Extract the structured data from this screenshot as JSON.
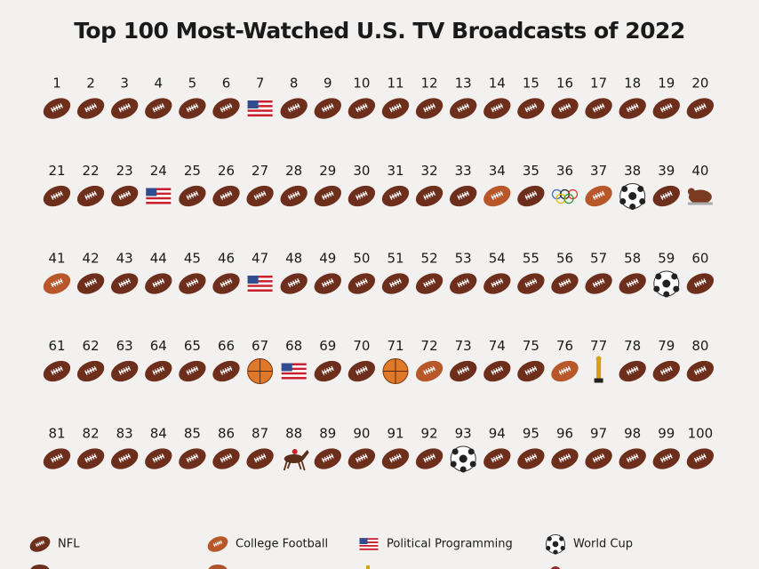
{
  "header": {
    "title": "Top 100 Most-Watched U.S. TV Broadcasts of 2022"
  },
  "grid": {
    "ranks": [
      1,
      2,
      3,
      4,
      5,
      6,
      7,
      8,
      9,
      10,
      11,
      12,
      13,
      14,
      15,
      16,
      17,
      18,
      19,
      20,
      21,
      22,
      23,
      24,
      25,
      26,
      27,
      28,
      29,
      30,
      31,
      32,
      33,
      34,
      35,
      36,
      37,
      38,
      39,
      40,
      41,
      42,
      43,
      44,
      45,
      46,
      47,
      48,
      49,
      50,
      51,
      52,
      53,
      54,
      55,
      56,
      57,
      58,
      59,
      60,
      61,
      62,
      63,
      64,
      65,
      66,
      67,
      68,
      69,
      70,
      71,
      72,
      73,
      74,
      75,
      76,
      77,
      78,
      79,
      80,
      81,
      82,
      83,
      84,
      85,
      86,
      87,
      88,
      89,
      90,
      91,
      92,
      93,
      94,
      95,
      96,
      97,
      98,
      99,
      100
    ],
    "icons": [
      "nfl",
      "nfl",
      "nfl",
      "nfl",
      "nfl",
      "nfl",
      "flag",
      "nfl",
      "nfl",
      "nfl",
      "nfl",
      "nfl",
      "nfl",
      "nfl",
      "nfl",
      "nfl",
      "nfl",
      "nfl",
      "nfl",
      "nfl",
      "nfl",
      "nfl",
      "nfl",
      "flag",
      "nfl",
      "nfl",
      "nfl",
      "nfl",
      "nfl",
      "nfl",
      "nfl",
      "nfl",
      "nfl",
      "college",
      "nfl",
      "rings",
      "college",
      "soccer",
      "nfl",
      "parade",
      "college",
      "nfl",
      "nfl",
      "nfl",
      "nfl",
      "nfl",
      "flag",
      "nfl",
      "nfl",
      "nfl",
      "nfl",
      "nfl",
      "nfl",
      "nfl",
      "nfl",
      "nfl",
      "nfl",
      "nfl",
      "soccer",
      "nfl",
      "nfl",
      "nfl",
      "nfl",
      "nfl",
      "nfl",
      "nfl",
      "basketball",
      "flag",
      "nfl",
      "nfl",
      "basketball",
      "college",
      "nfl",
      "nfl",
      "nfl",
      "college",
      "trophy",
      "nfl",
      "nfl",
      "nfl",
      "nfl",
      "nfl",
      "nfl",
      "nfl",
      "nfl",
      "nfl",
      "nfl",
      "horse",
      "nfl",
      "nfl",
      "nfl",
      "nfl",
      "soccer",
      "nfl",
      "nfl",
      "nfl",
      "nfl",
      "nfl",
      "nfl",
      "nfl"
    ]
  },
  "legend": [
    {
      "label": "NFL",
      "icon": "nfl"
    },
    {
      "label": "College Football",
      "icon": "college"
    },
    {
      "label": "Political Programming",
      "icon": "flag"
    },
    {
      "label": "World Cup",
      "icon": "soccer"
    }
  ]
}
